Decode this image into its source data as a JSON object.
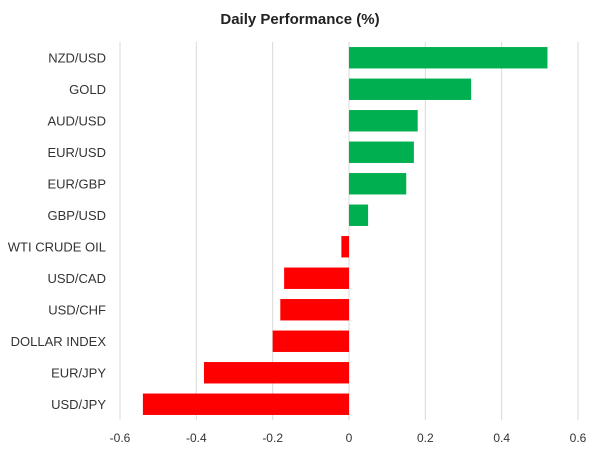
{
  "chart_data": {
    "type": "bar",
    "orientation": "horizontal",
    "title": "Daily Performance (%)",
    "xlabel": "",
    "ylabel": "",
    "categories": [
      "NZD/USD",
      "GOLD",
      "AUD/USD",
      "EUR/USD",
      "EUR/GBP",
      "GBP/USD",
      "WTI CRUDE OIL",
      "USD/CAD",
      "USD/CHF",
      "DOLLAR INDEX",
      "EUR/JPY",
      "USD/JPY"
    ],
    "values": [
      0.52,
      0.32,
      0.18,
      0.17,
      0.15,
      0.05,
      -0.02,
      -0.17,
      -0.18,
      -0.2,
      -0.38,
      -0.54
    ],
    "xlim": [
      -0.6,
      0.6
    ],
    "ticks": [
      -0.6,
      -0.4,
      -0.2,
      0,
      0.2,
      0.4,
      0.6
    ],
    "tick_labels": [
      "-0.6",
      "-0.4",
      "-0.2",
      "0",
      "0.2",
      "0.4",
      "0.6"
    ],
    "grid": "vertical",
    "legend": "none",
    "colors": {
      "positive": "#00b050",
      "negative": "#ff0000",
      "grid": "#d9d9d9"
    }
  }
}
